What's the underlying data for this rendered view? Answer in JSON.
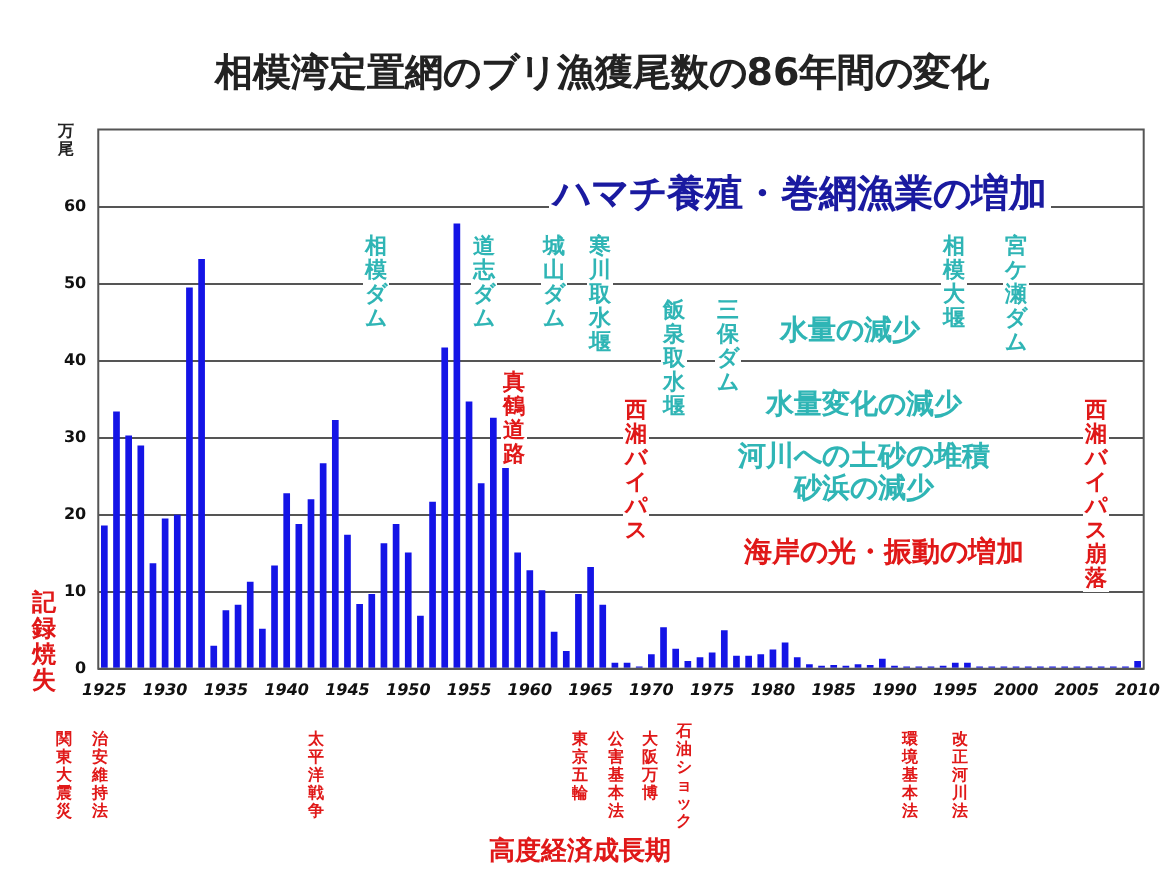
{
  "chart_data": {
    "type": "bar",
    "title": "相模湾定置網のブリ漁獲尾数の86年間の変化",
    "ylabel": "万尾",
    "categories": [
      "1925",
      null,
      null,
      null,
      null,
      "1930",
      null,
      null,
      null,
      null,
      "1935",
      null,
      null,
      null,
      null,
      "1940",
      null,
      null,
      null,
      null,
      "1945",
      null,
      null,
      null,
      null,
      "1950",
      null,
      null,
      null,
      null,
      "1955",
      null,
      null,
      null,
      null,
      "1960",
      null,
      null,
      null,
      null,
      "1965",
      null,
      null,
      null,
      null,
      "1970",
      null,
      null,
      null,
      null,
      "1975",
      null,
      null,
      null,
      null,
      "1980",
      null,
      null,
      null,
      null,
      "1985",
      null,
      null,
      null,
      null,
      "1990",
      null,
      null,
      null,
      null,
      "1995",
      null,
      null,
      null,
      null,
      "2000",
      null,
      null,
      null,
      null,
      "2005",
      null,
      null,
      null,
      null,
      "2010"
    ],
    "values": [
      18.6,
      33.4,
      30.3,
      29,
      13.7,
      19.5,
      20,
      49.5,
      53.2,
      3,
      7.6,
      8.3,
      11.3,
      5.2,
      13.4,
      22.8,
      18.8,
      22,
      26.7,
      32.3,
      17.4,
      8.4,
      9.7,
      16.3,
      18.8,
      15.1,
      6.9,
      21.7,
      41.7,
      57.8,
      34.7,
      24.1,
      32.6,
      26.1,
      15.1,
      12.8,
      10.2,
      4.8,
      2.3,
      9.7,
      13.2,
      8.3,
      0.8,
      0.8,
      0.3,
      1.9,
      5.4,
      2.6,
      1,
      1.5,
      2.1,
      5,
      1.7,
      1.7,
      1.9,
      2.5,
      3.4,
      1.5,
      0.6,
      0.4,
      0.5,
      0.4,
      0.6,
      0.5,
      1.3,
      0.4,
      0.3,
      0.3,
      0.3,
      0.4,
      0.8,
      0.8,
      0.3,
      0.3,
      0.3,
      0.3,
      0.3,
      0.3,
      0.3,
      0.3,
      0.3,
      0.3,
      0.3,
      0.3,
      0.3,
      1
    ],
    "color": "#1414e6",
    "ylim": [
      0,
      70
    ],
    "yticks": [
      0,
      10,
      20,
      30,
      40,
      50,
      60
    ],
    "grid": "y",
    "annotations": [
      "ハマチ養殖・巻網漁業の増加",
      "相模ダム",
      "道志ダム",
      "城山ダム",
      "寒川取水堰",
      "飯泉取水堰",
      "三保ダム",
      "相模大堰",
      "宮ケ瀬ダム",
      "水量の減少",
      "水量変化の減少",
      "河川への土砂の堆積",
      "砂浜の減少",
      "海岸の光・振動の増加",
      "真鶴道路",
      "西湘バイパス",
      "西湘バイパス崩落",
      "記録焼失",
      "関東大震災",
      "治安維持法",
      "太平洋戦争",
      "東京五輪",
      "公害基本法",
      "大阪万博",
      "石油ショック",
      "環境基本法",
      "改正河川法",
      "高度経済成長期"
    ]
  }
}
